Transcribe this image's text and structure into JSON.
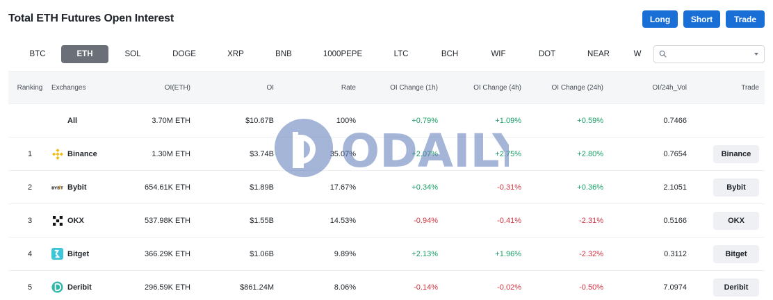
{
  "page": {
    "title": "Total ETH Futures Open Interest"
  },
  "actions": {
    "long": "Long",
    "short": "Short",
    "trade": "Trade"
  },
  "tabs": [
    "BTC",
    "ETH",
    "SOL",
    "DOGE",
    "XRP",
    "BNB",
    "1000PEPE",
    "LTC",
    "BCH",
    "WIF",
    "DOT",
    "NEAR",
    "W"
  ],
  "active_tab": "ETH",
  "search": {
    "value": "",
    "placeholder": ""
  },
  "table": {
    "headers": [
      "Ranking",
      "Exchanges",
      "OI(ETH)",
      "OI",
      "Rate",
      "OI Change (1h)",
      "OI Change (4h)",
      "OI Change (24h)",
      "OI/24h_Vol",
      "Trade"
    ],
    "rows": [
      {
        "rank": "",
        "exchange": "All",
        "oi_eth": "3.70M ETH",
        "oi": "$10.67B",
        "rate": "100%",
        "ch1h": "+0.79%",
        "ch4h": "+1.09%",
        "ch24h": "+0.59%",
        "vol": "0.7466",
        "trade": "",
        "logo": ""
      },
      {
        "rank": "1",
        "exchange": "Binance",
        "oi_eth": "1.30M ETH",
        "oi": "$3.74B",
        "rate": "35.07%",
        "ch1h": "+2.07%",
        "ch4h": "+2.75%",
        "ch24h": "+2.80%",
        "vol": "0.7654",
        "trade": "Binance",
        "logo": "binance-icon"
      },
      {
        "rank": "2",
        "exchange": "Bybit",
        "oi_eth": "654.61K ETH",
        "oi": "$1.89B",
        "rate": "17.67%",
        "ch1h": "+0.34%",
        "ch4h": "-0.31%",
        "ch24h": "+0.36%",
        "vol": "2.1051",
        "trade": "Bybit",
        "logo": "bybit-icon"
      },
      {
        "rank": "3",
        "exchange": "OKX",
        "oi_eth": "537.98K ETH",
        "oi": "$1.55B",
        "rate": "14.53%",
        "ch1h": "-0.94%",
        "ch4h": "-0.41%",
        "ch24h": "-2.31%",
        "vol": "0.5166",
        "trade": "OKX",
        "logo": "okx-icon"
      },
      {
        "rank": "4",
        "exchange": "Bitget",
        "oi_eth": "366.29K ETH",
        "oi": "$1.06B",
        "rate": "9.89%",
        "ch1h": "+2.13%",
        "ch4h": "+1.96%",
        "ch24h": "-2.32%",
        "vol": "0.3112",
        "trade": "Bitget",
        "logo": "bitget-icon"
      },
      {
        "rank": "5",
        "exchange": "Deribit",
        "oi_eth": "296.59K ETH",
        "oi": "$861.24M",
        "rate": "8.06%",
        "ch1h": "-0.14%",
        "ch4h": "-0.02%",
        "ch24h": "-0.50%",
        "vol": "7.0974",
        "trade": "Deribit",
        "logo": "deribit-icon"
      }
    ]
  },
  "watermark": {
    "text": "ODAILY"
  },
  "colors": {
    "accent": "#1a6fd6",
    "positive": "#18a065",
    "negative": "#d23340",
    "active_tab": "#6b7078"
  }
}
